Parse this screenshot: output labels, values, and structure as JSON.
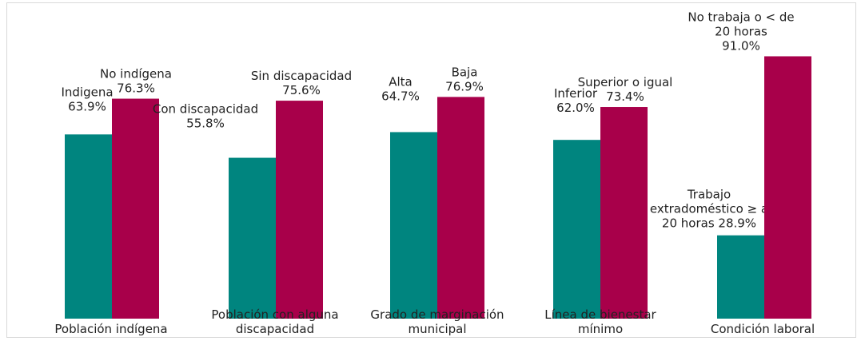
{
  "chart_data": {
    "type": "bar",
    "categories": [
      "Población indígena",
      "Población con alguna discapacidad",
      "Grado de marginación municipal",
      "Línea de bienestar mínimo",
      "Condición laboral"
    ],
    "category_label_lines": [
      [
        "Población indígena"
      ],
      [
        "Población con alguna",
        "discapacidad"
      ],
      [
        "Grado de marginación",
        "municipal"
      ],
      [
        "Línea de bienestar",
        "mínimo"
      ],
      [
        "Condición laboral"
      ]
    ],
    "bars": [
      [
        {
          "value": 63.9,
          "label": [
            "Indigena",
            "63.9%"
          ]
        },
        {
          "value": 76.3,
          "label": [
            "No indígena",
            "76.3%"
          ]
        }
      ],
      [
        {
          "value": 55.8,
          "label": [
            "Con discapacidad",
            "55.8%"
          ]
        },
        {
          "value": 75.6,
          "label": [
            "Sin discapacidad",
            "75.6%"
          ]
        }
      ],
      [
        {
          "value": 64.7,
          "label": [
            "Alta",
            "64.7%"
          ]
        },
        {
          "value": 76.9,
          "label": [
            "Baja",
            "76.9%"
          ]
        }
      ],
      [
        {
          "value": 62.0,
          "label": [
            "Inferior",
            "62.0%"
          ]
        },
        {
          "value": 73.4,
          "label": [
            "Superior o igual",
            "73.4%"
          ]
        }
      ],
      [
        {
          "value": 28.9,
          "label": [
            "Trabajo",
            "extradoméstico ≥ a",
            "20 horas 28.9%"
          ]
        },
        {
          "value": 91.0,
          "label": [
            "No trabaja o < de",
            "20 horas",
            "91.0%"
          ]
        }
      ]
    ],
    "colors": [
      "#00857f",
      "#a8004a"
    ],
    "ylim": [
      0,
      100
    ],
    "grid": false,
    "legend": "none"
  }
}
